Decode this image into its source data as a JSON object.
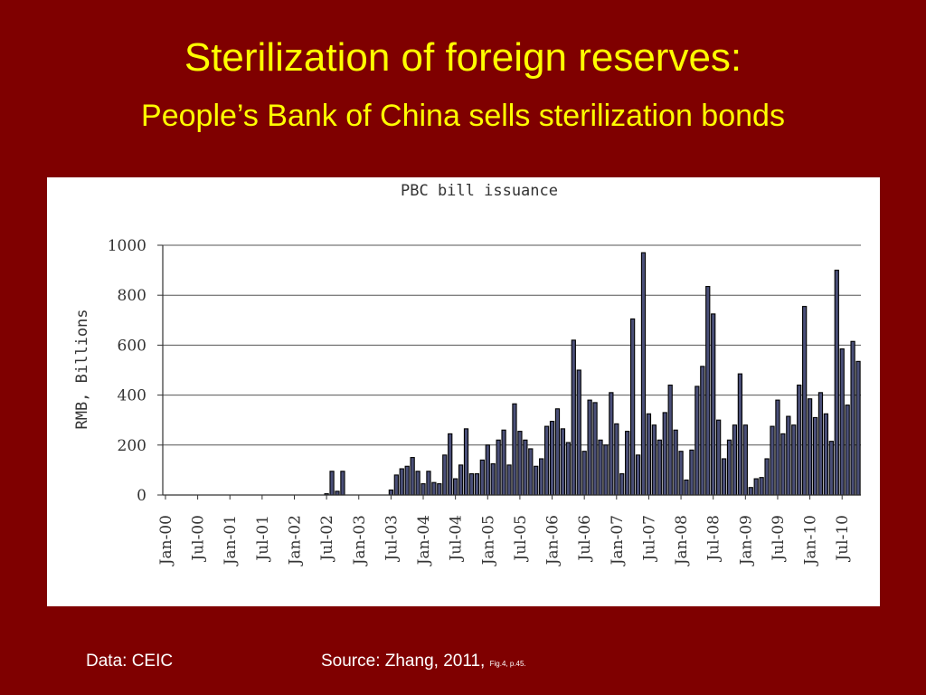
{
  "slide": {
    "title": "Sterilization of foreign reserves:",
    "subtitle": "People’s Bank of China sells sterilization bonds",
    "footer_data": "Data: CEIC",
    "footer_source": "Source:  Zhang, 2011, ",
    "footer_source_small": "Fig.4, p.45."
  },
  "colors": {
    "background": "#7f0000",
    "title": "#ffff00",
    "bar_fill": "#4a4f78",
    "bar_stroke": "#000000"
  },
  "chart_data": {
    "type": "bar",
    "title": "PBC bill issuance",
    "xlabel": "",
    "ylabel": "RMB, Billions",
    "ylim": [
      0,
      1000
    ],
    "y_ticks": [
      0,
      200,
      400,
      600,
      800,
      1000
    ],
    "grid": true,
    "x_tick_labels": [
      "Jan-00",
      "Jul-00",
      "Jan-01",
      "Jul-01",
      "Jan-02",
      "Jul-02",
      "Jan-03",
      "Jul-03",
      "Jan-04",
      "Jul-04",
      "Jan-05",
      "Jul-05",
      "Jan-06",
      "Jul-06",
      "Jan-07",
      "Jul-07",
      "Jan-08",
      "Jul-08",
      "Jan-09",
      "Jul-09",
      "Jan-10",
      "Jul-10"
    ],
    "start_label": "Jan-00",
    "frequency": "monthly",
    "values": [
      0,
      0,
      0,
      0,
      0,
      0,
      0,
      0,
      0,
      0,
      0,
      0,
      0,
      0,
      0,
      0,
      0,
      0,
      0,
      0,
      0,
      0,
      0,
      0,
      0,
      0,
      0,
      0,
      0,
      0,
      5,
      95,
      15,
      95,
      0,
      0,
      0,
      0,
      0,
      0,
      0,
      0,
      20,
      80,
      105,
      115,
      150,
      95,
      45,
      95,
      50,
      45,
      160,
      245,
      65,
      120,
      265,
      85,
      85,
      140,
      200,
      125,
      220,
      260,
      120,
      365,
      255,
      220,
      185,
      115,
      145,
      275,
      295,
      345,
      265,
      210,
      620,
      500,
      175,
      380,
      370,
      220,
      200,
      410,
      285,
      85,
      255,
      705,
      160,
      970,
      325,
      280,
      220,
      330,
      440,
      260,
      175,
      60,
      180,
      435,
      515,
      835,
      725,
      300,
      145,
      220,
      280,
      485,
      280,
      30,
      65,
      70,
      145,
      275,
      380,
      245,
      315,
      280,
      440,
      755,
      385,
      310,
      410,
      325,
      215,
      900,
      585,
      360,
      615,
      535
    ]
  }
}
